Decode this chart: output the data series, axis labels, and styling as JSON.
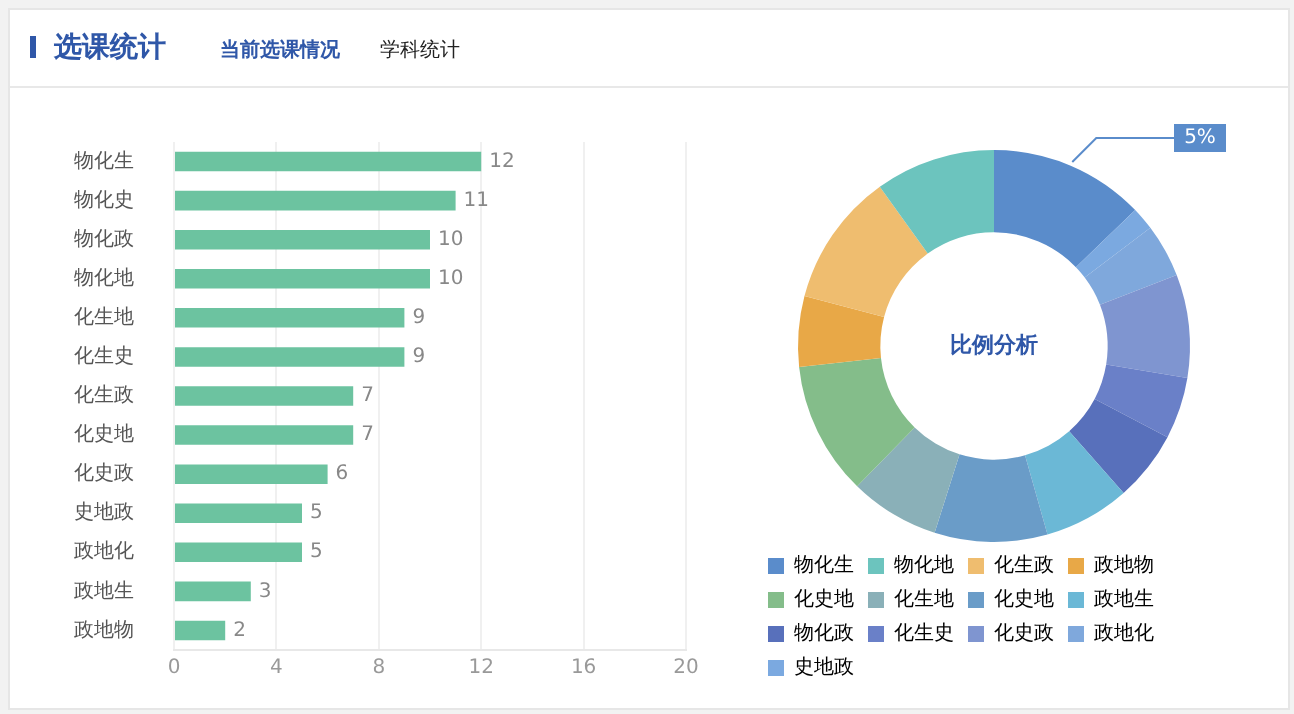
{
  "chart_data": [
    {
      "type": "bar",
      "title": "选课统计",
      "annotations": [
        "当前选课情况",
        "学科统计"
      ],
      "orientation": "horizontal",
      "categories": [
        "物化生",
        "物化史",
        "物化政",
        "物化地",
        "化生地",
        "化生史",
        "化生政",
        "化史地",
        "化史政",
        "史地政",
        "政地化",
        "政地生",
        "政地物"
      ],
      "values": [
        12,
        11,
        10,
        10,
        9,
        9,
        7,
        7,
        6,
        5,
        5,
        3,
        2
      ],
      "color": "#6cc3a0",
      "xlim": [
        0,
        20
      ],
      "xticks": [
        0,
        4,
        8,
        12,
        16,
        20
      ],
      "grid": "x",
      "data_labels": true
    },
    {
      "type": "donut",
      "annotations": [
        "比例分析",
        "5%"
      ],
      "categories": [
        "物化生",
        "物化地",
        "化生政",
        "政地物",
        "化史地",
        "化生地",
        "化史地",
        "政地生",
        "物化政",
        "化生史",
        "化史政",
        "政地化",
        "史地政"
      ],
      "values": [
        12.8,
        9.9,
        11.0,
        5.8,
        11.0,
        7.4,
        9.3,
        7.1,
        5.8,
        5.1,
        8.5,
        4.4,
        1.9
      ],
      "colors": [
        "#5a8ccb",
        "#6cc4be",
        "#efbd6f",
        "#e8a847",
        "#84bd8a",
        "#8ab0b8",
        "#6a9cc8",
        "#6bb8d6",
        "#5870bb",
        "#6a80c8",
        "#7f95d0",
        "#7fa8dc",
        "#7ba9e0"
      ],
      "legend": "bottom"
    }
  ]
}
